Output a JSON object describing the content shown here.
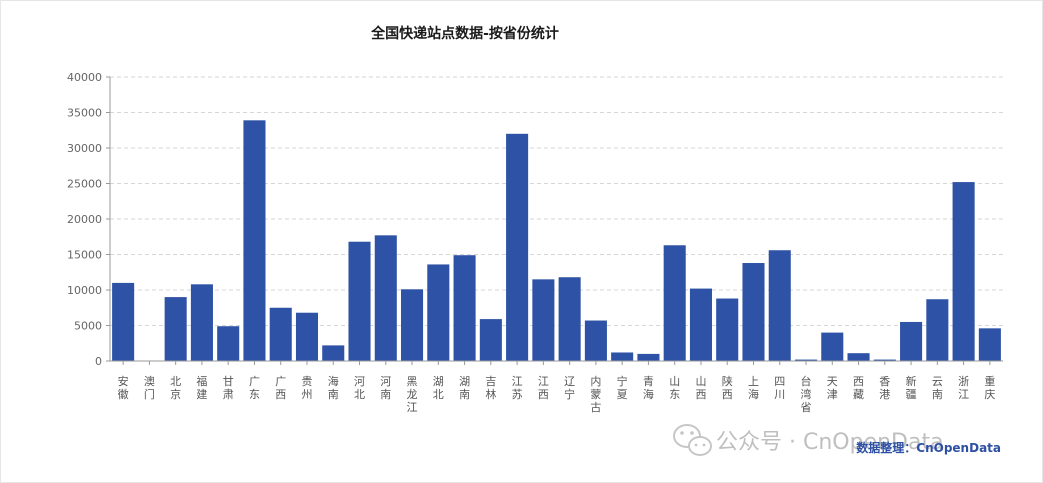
{
  "chart_data": {
    "type": "bar",
    "title": "全国快递站点数据-按省份统计",
    "xlabel": "",
    "ylabel": "",
    "ylim": [
      0,
      40000
    ],
    "yticks": [
      0,
      5000,
      10000,
      15000,
      20000,
      25000,
      30000,
      35000,
      40000
    ],
    "grid": true,
    "bar_color": "#2e52a5",
    "categories": [
      "安徽",
      "澳门",
      "北京",
      "福建",
      "甘肃",
      "广东",
      "广西",
      "贵州",
      "海南",
      "河北",
      "河南",
      "黑龙江",
      "湖北",
      "湖南",
      "吉林",
      "江苏",
      "江西",
      "辽宁",
      "内蒙古",
      "宁夏",
      "青海",
      "山东",
      "山西",
      "陕西",
      "上海",
      "四川",
      "台湾省",
      "天津",
      "西藏",
      "香港",
      "新疆",
      "云南",
      "浙江",
      "重庆"
    ],
    "values": [
      11000,
      0,
      9000,
      10800,
      4900,
      33900,
      7500,
      6800,
      2200,
      16800,
      17700,
      10100,
      13600,
      14900,
      5900,
      32000,
      11500,
      11800,
      5700,
      1200,
      1000,
      16300,
      10200,
      8800,
      13800,
      15600,
      200,
      4000,
      1100,
      200,
      5500,
      8700,
      25200,
      4600
    ]
  },
  "source_note": "数据整理：CnOpenData",
  "watermark": "公众号 · CnOpenData"
}
